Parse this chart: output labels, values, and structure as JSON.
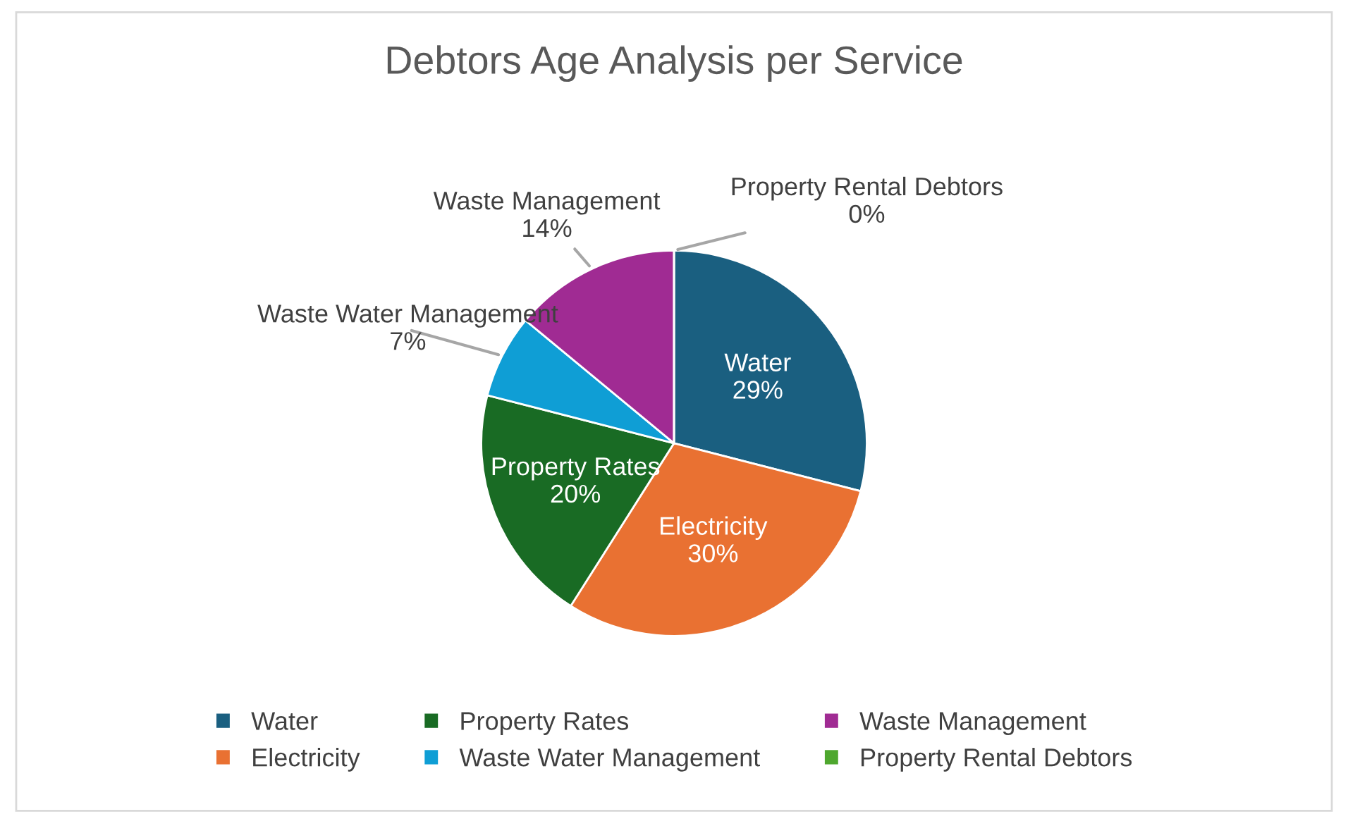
{
  "chart_data": {
    "type": "pie",
    "title": "Debtors Age Analysis per Service",
    "categories": [
      "Water",
      "Electricity",
      "Property Rates",
      "Waste Water Management",
      "Waste Management",
      "Property Rental Debtors"
    ],
    "values": [
      29,
      30,
      20,
      7,
      14,
      0
    ],
    "value_labels": [
      "29%",
      "30%",
      "20%",
      "7%",
      "14%",
      "0%"
    ],
    "colors": [
      "#1a5f80",
      "#e97132",
      "#196b24",
      "#0f9ed5",
      "#a02b93",
      "#4ea72e"
    ],
    "legend": "bottom"
  }
}
